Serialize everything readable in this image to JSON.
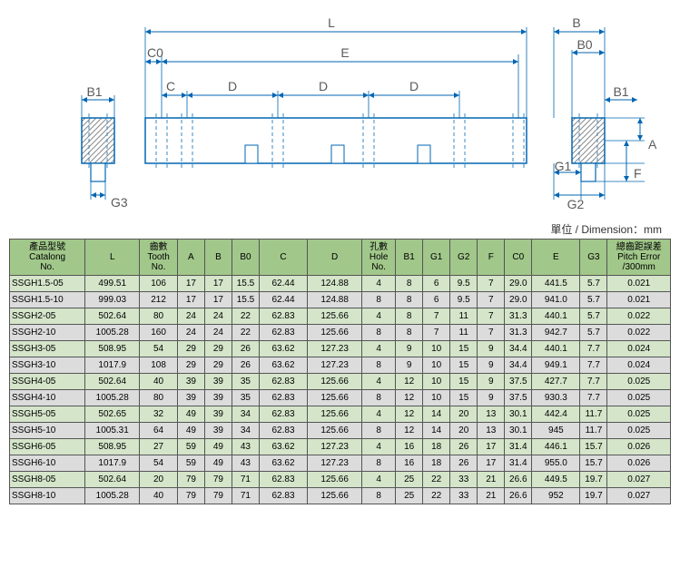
{
  "unit_label": "單位 / Dimension：mm",
  "diagram": {
    "labels": {
      "L": "L",
      "E": "E",
      "C0": "C0",
      "C": "C",
      "D": "D",
      "B": "B",
      "B0": "B0",
      "B1": "B1",
      "G1": "G1",
      "G2": "G2",
      "G3": "G3",
      "F": "F",
      "A": "A"
    },
    "stroke_color": "#0066b3",
    "rack_fill": "#ffffff",
    "hatch_fill": "#8a8a8a",
    "dash_color": "#3a88c4",
    "text_color": "#5a5a5a",
    "arrow_color": "#0066b3"
  },
  "table": {
    "header_bg": "#a1c78a",
    "row_green_bg": "#d4e5c9",
    "row_gray_bg": "#dcdcdc",
    "border_color": "#555555",
    "columns": [
      "產品型號\nCatalong\nNo.",
      "L",
      "齒數\nTooth\nNo.",
      "A",
      "B",
      "B0",
      "C",
      "D",
      "孔數\nHole\nNo.",
      "B1",
      "G1",
      "G2",
      "F",
      "C0",
      "E",
      "G3",
      "總齒距誤差\nPitch Error\n/300mm"
    ],
    "rows": [
      {
        "c": "green",
        "v": [
          "SSGH1.5-05",
          "499.51",
          "106",
          "17",
          "17",
          "15.5",
          "62.44",
          "124.88",
          "4",
          "8",
          "6",
          "9.5",
          "7",
          "29.0",
          "441.5",
          "5.7",
          "0.021"
        ]
      },
      {
        "c": "gray",
        "v": [
          "SSGH1.5-10",
          "999.03",
          "212",
          "17",
          "17",
          "15.5",
          "62.44",
          "124.88",
          "8",
          "8",
          "6",
          "9.5",
          "7",
          "29.0",
          "941.0",
          "5.7",
          "0.021"
        ]
      },
      {
        "c": "green",
        "v": [
          "SSGH2-05",
          "502.64",
          "80",
          "24",
          "24",
          "22",
          "62.83",
          "125.66",
          "4",
          "8",
          "7",
          "11",
          "7",
          "31.3",
          "440.1",
          "5.7",
          "0.022"
        ]
      },
      {
        "c": "gray",
        "v": [
          "SSGH2-10",
          "1005.28",
          "160",
          "24",
          "24",
          "22",
          "62.83",
          "125.66",
          "8",
          "8",
          "7",
          "11",
          "7",
          "31.3",
          "942.7",
          "5.7",
          "0.022"
        ]
      },
      {
        "c": "green",
        "v": [
          "SSGH3-05",
          "508.95",
          "54",
          "29",
          "29",
          "26",
          "63.62",
          "127.23",
          "4",
          "9",
          "10",
          "15",
          "9",
          "34.4",
          "440.1",
          "7.7",
          "0.024"
        ]
      },
      {
        "c": "gray",
        "v": [
          "SSGH3-10",
          "1017.9",
          "108",
          "29",
          "29",
          "26",
          "63.62",
          "127.23",
          "8",
          "9",
          "10",
          "15",
          "9",
          "34.4",
          "949.1",
          "7.7",
          "0.024"
        ]
      },
      {
        "c": "green",
        "v": [
          "SSGH4-05",
          "502.64",
          "40",
          "39",
          "39",
          "35",
          "62.83",
          "125.66",
          "4",
          "12",
          "10",
          "15",
          "9",
          "37.5",
          "427.7",
          "7.7",
          "0.025"
        ]
      },
      {
        "c": "gray",
        "v": [
          "SSGH4-10",
          "1005.28",
          "80",
          "39",
          "39",
          "35",
          "62.83",
          "125.66",
          "8",
          "12",
          "10",
          "15",
          "9",
          "37.5",
          "930.3",
          "7.7",
          "0.025"
        ]
      },
      {
        "c": "green",
        "v": [
          "SSGH5-05",
          "502.65",
          "32",
          "49",
          "39",
          "34",
          "62.83",
          "125.66",
          "4",
          "12",
          "14",
          "20",
          "13",
          "30.1",
          "442.4",
          "11.7",
          "0.025"
        ]
      },
      {
        "c": "gray",
        "v": [
          "SSGH5-10",
          "1005.31",
          "64",
          "49",
          "39",
          "34",
          "62.83",
          "125.66",
          "8",
          "12",
          "14",
          "20",
          "13",
          "30.1",
          "945",
          "11.7",
          "0.025"
        ]
      },
      {
        "c": "green",
        "v": [
          "SSGH6-05",
          "508.95",
          "27",
          "59",
          "49",
          "43",
          "63.62",
          "127.23",
          "4",
          "16",
          "18",
          "26",
          "17",
          "31.4",
          "446.1",
          "15.7",
          "0.026"
        ]
      },
      {
        "c": "gray",
        "v": [
          "SSGH6-10",
          "1017.9",
          "54",
          "59",
          "49",
          "43",
          "63.62",
          "127.23",
          "8",
          "16",
          "18",
          "26",
          "17",
          "31.4",
          "955.0",
          "15.7",
          "0.026"
        ]
      },
      {
        "c": "green",
        "v": [
          "SSGH8-05",
          "502.64",
          "20",
          "79",
          "79",
          "71",
          "62.83",
          "125.66",
          "4",
          "25",
          "22",
          "33",
          "21",
          "26.6",
          "449.5",
          "19.7",
          "0.027"
        ]
      },
      {
        "c": "gray",
        "v": [
          "SSGH8-10",
          "1005.28",
          "40",
          "79",
          "79",
          "71",
          "62.83",
          "125.66",
          "8",
          "25",
          "22",
          "33",
          "21",
          "26.6",
          "952",
          "19.7",
          "0.027"
        ]
      }
    ]
  }
}
